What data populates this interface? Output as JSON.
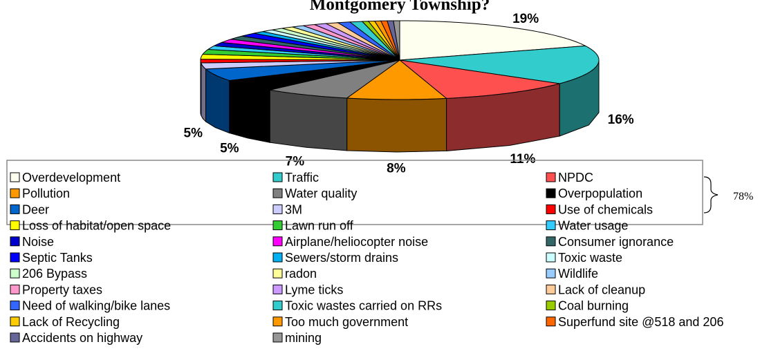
{
  "chart_data": {
    "type": "pie3d",
    "title": "Montgomery Township?",
    "categories": [
      "Overdevelopment",
      "Traffic",
      "NPDC",
      "Pollution",
      "Water quality",
      "Overpopulation",
      "Deer",
      "3M",
      "Use of chemicals",
      "Loss of habitat/open space",
      "Lawn run off",
      "Water usage",
      "Noise",
      "Airplane/heliocopter noise",
      "Consumer ignorance",
      "Septic Tanks",
      "Sewers/storm drains",
      "Toxic waste",
      "206 Bypass",
      "radon",
      "Wildlife",
      "Property taxes",
      "Lyme ticks",
      "Lack of cleanup",
      "Need of walking/bike lanes",
      "Toxic wastes carried on RRs",
      "Coal burning",
      "Lack of Recycling",
      "Too much government",
      "Superfund site @518 and 206",
      "Accidents on highway",
      "mining"
    ],
    "values": [
      19,
      16,
      11,
      8,
      7,
      5,
      5,
      2.5,
      1.5,
      2,
      2,
      1.5,
      1.5,
      1.5,
      1.5,
      1.5,
      1,
      1,
      1,
      1,
      1,
      1,
      1,
      1,
      1,
      1,
      0.5,
      0.5,
      0.5,
      0.5,
      0.5,
      0.5
    ],
    "value_labels": [
      "19%",
      "16%",
      "11%",
      "8%",
      "7%",
      "5%",
      "5%",
      null,
      null,
      null,
      null,
      null,
      null,
      null,
      null,
      null,
      null,
      null,
      null,
      null,
      null,
      null,
      null,
      null,
      null,
      null,
      null,
      null,
      null,
      null,
      null,
      null
    ],
    "colors": [
      "#FFFFF0",
      "#33CCCC",
      "#FF5050",
      "#FF9900",
      "#808080",
      "#000000",
      "#0066CC",
      "#CCCCFF",
      "#FF0000",
      "#FFFF00",
      "#33CC33",
      "#33CCFF",
      "#0000CC",
      "#FF00FF",
      "#336666",
      "#0000FF",
      "#00B0F0",
      "#CCFFFF",
      "#CCFFCC",
      "#FFFF99",
      "#99CCFF",
      "#FF99CC",
      "#CC99FF",
      "#FFCC99",
      "#3366FF",
      "#33CCCC",
      "#99CC00",
      "#FFCC00",
      "#FF9900",
      "#FF6600",
      "#666699",
      "#969696"
    ],
    "annotation": "78%"
  }
}
